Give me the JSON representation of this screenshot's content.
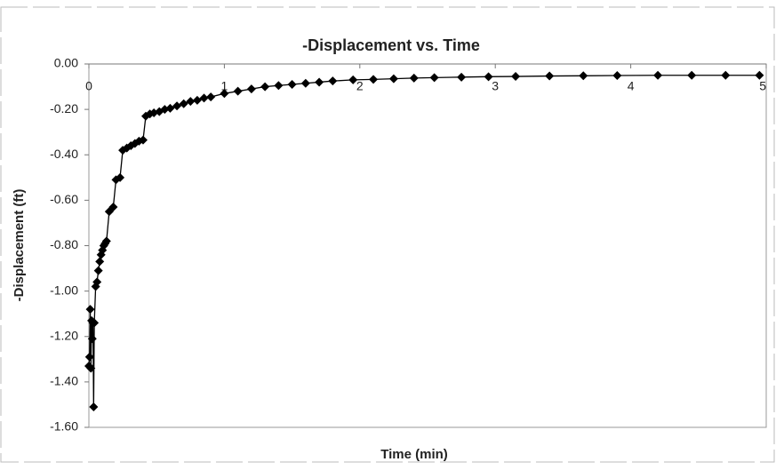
{
  "chart_data": {
    "type": "line",
    "title": "-Displacement vs. Time",
    "x_label": "Time (min)",
    "y_label": "-Displacement (ft)",
    "x": [
      0,
      0.005,
      0.01,
      0.015,
      0.02,
      0.025,
      0.03,
      0.035,
      0.04,
      0.05,
      0.06,
      0.07,
      0.08,
      0.09,
      0.1,
      0.11,
      0.12,
      0.13,
      0.15,
      0.18,
      0.2,
      0.23,
      0.25,
      0.28,
      0.31,
      0.34,
      0.37,
      0.4,
      0.42,
      0.45,
      0.48,
      0.52,
      0.56,
      0.6,
      0.65,
      0.7,
      0.75,
      0.8,
      0.85,
      0.9,
      1.0,
      1.1,
      1.2,
      1.3,
      1.4,
      1.5,
      1.6,
      1.7,
      1.8,
      1.95,
      2.1,
      2.25,
      2.4,
      2.55,
      2.75,
      2.95,
      3.15,
      3.4,
      3.65,
      3.9,
      4.2,
      4.45,
      4.7,
      4.95
    ],
    "values": [
      -1.33,
      -1.29,
      -1.08,
      -1.34,
      -1.13,
      -1.21,
      -1.14,
      -1.51,
      -1.14,
      -0.98,
      -0.96,
      -0.91,
      -0.87,
      -0.84,
      -0.82,
      -0.8,
      -0.79,
      -0.78,
      -0.65,
      -0.63,
      -0.51,
      -0.5,
      -0.38,
      -0.37,
      -0.36,
      -0.35,
      -0.34,
      -0.335,
      -0.23,
      -0.22,
      -0.215,
      -0.21,
      -0.2,
      -0.195,
      -0.185,
      -0.175,
      -0.165,
      -0.16,
      -0.15,
      -0.145,
      -0.13,
      -0.12,
      -0.11,
      -0.1,
      -0.095,
      -0.09,
      -0.085,
      -0.08,
      -0.075,
      -0.07,
      -0.068,
      -0.065,
      -0.062,
      -0.06,
      -0.058,
      -0.056,
      -0.055,
      -0.053,
      -0.052,
      -0.051,
      -0.05,
      -0.05,
      -0.05,
      -0.05
    ],
    "color": "#000000",
    "xlim": [
      0,
      5
    ],
    "xticks": [
      0,
      1,
      2,
      3,
      4,
      5
    ],
    "ylim": [
      -1.6,
      0
    ],
    "yticks": [
      {
        "value": 0,
        "label": "0.00"
      },
      {
        "value": -0.2,
        "label": "-0.20"
      },
      {
        "value": -0.4,
        "label": "-0.40"
      },
      {
        "value": -0.6,
        "label": "-0.60"
      },
      {
        "value": -0.8,
        "label": "-0.80"
      },
      {
        "value": -1.0,
        "label": "-1.00"
      },
      {
        "value": -1.2,
        "label": "-1.20"
      },
      {
        "value": -1.4,
        "label": "-1.40"
      },
      {
        "value": -1.6,
        "label": "-1.60"
      }
    ]
  }
}
